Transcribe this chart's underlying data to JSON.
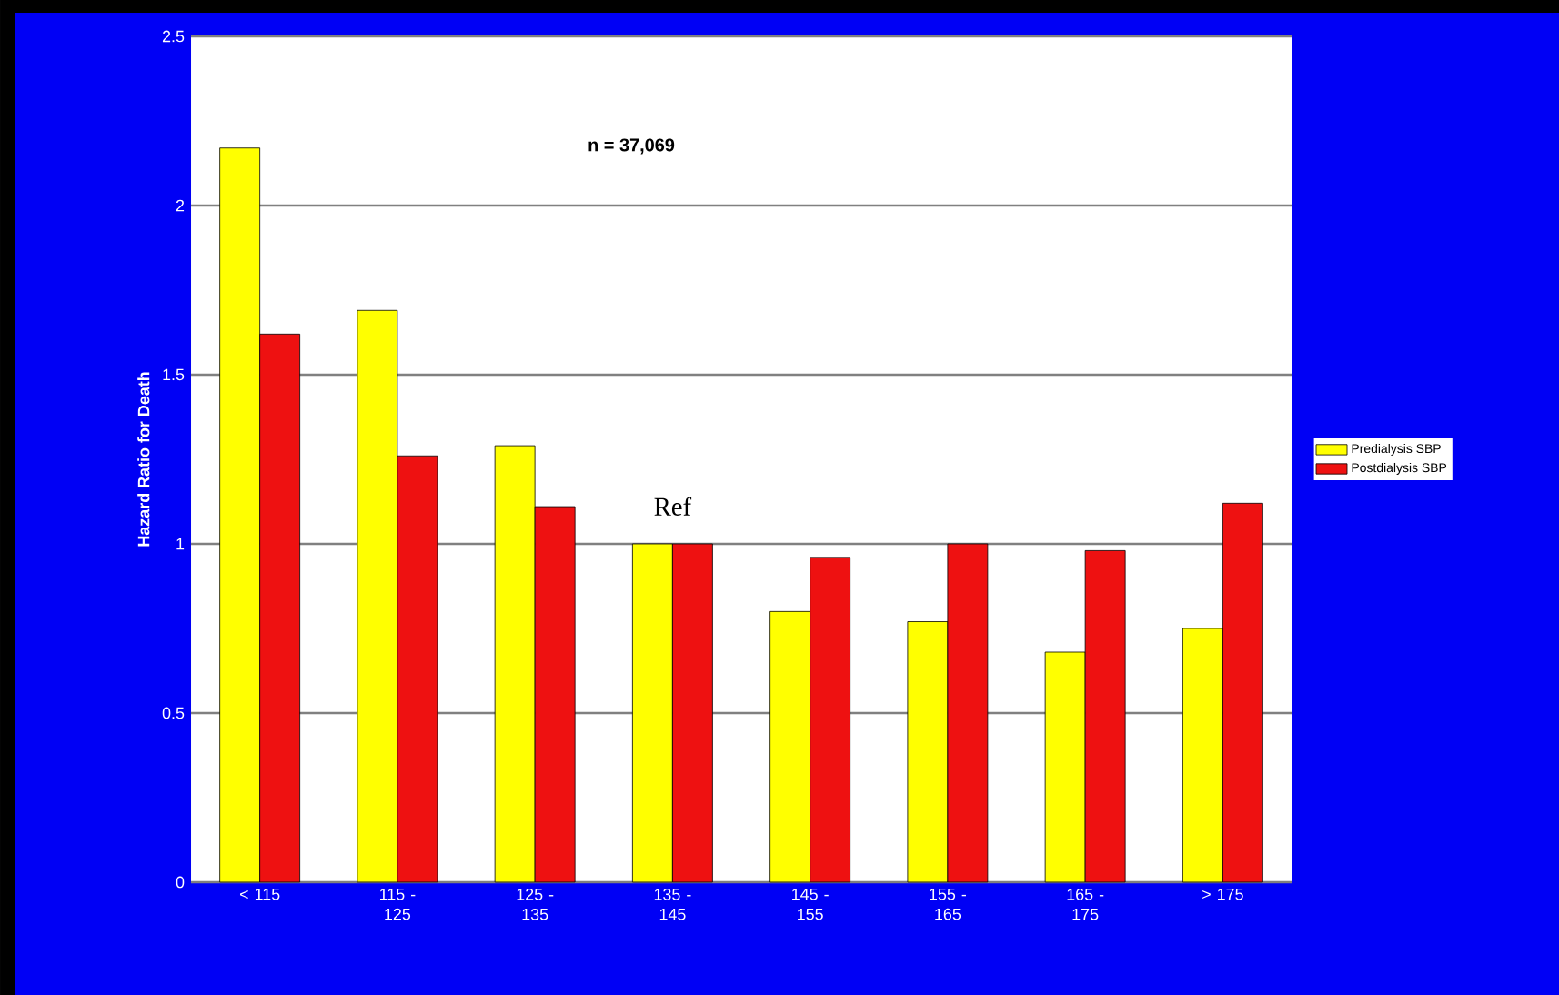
{
  "chart_data": {
    "type": "bar",
    "ylabel": "Hazard Ratio for Death",
    "categories": [
      "< 115",
      "115 - 125",
      "125 - 135",
      "135 - 145",
      "145 - 155",
      "155 - 165",
      "165 - 175",
      "> 175"
    ],
    "series": [
      {
        "name": "Predialysis SBP",
        "color": "#ffff00",
        "values": [
          2.17,
          1.69,
          1.29,
          1.0,
          0.8,
          0.77,
          0.68,
          0.75
        ]
      },
      {
        "name": "Postdialysis SBP",
        "color": "#ee1111",
        "values": [
          1.62,
          1.26,
          1.11,
          1.0,
          0.96,
          1.0,
          0.98,
          1.12
        ]
      }
    ],
    "ylim": [
      0,
      2.5
    ],
    "yticks": [
      0,
      0.5,
      1,
      1.5,
      2,
      2.5
    ],
    "grid": "y",
    "legend": "right",
    "annotations": [
      "n = 37,069",
      {
        "text": "Ref",
        "x": "135 - 145",
        "y": 1.0
      }
    ]
  }
}
